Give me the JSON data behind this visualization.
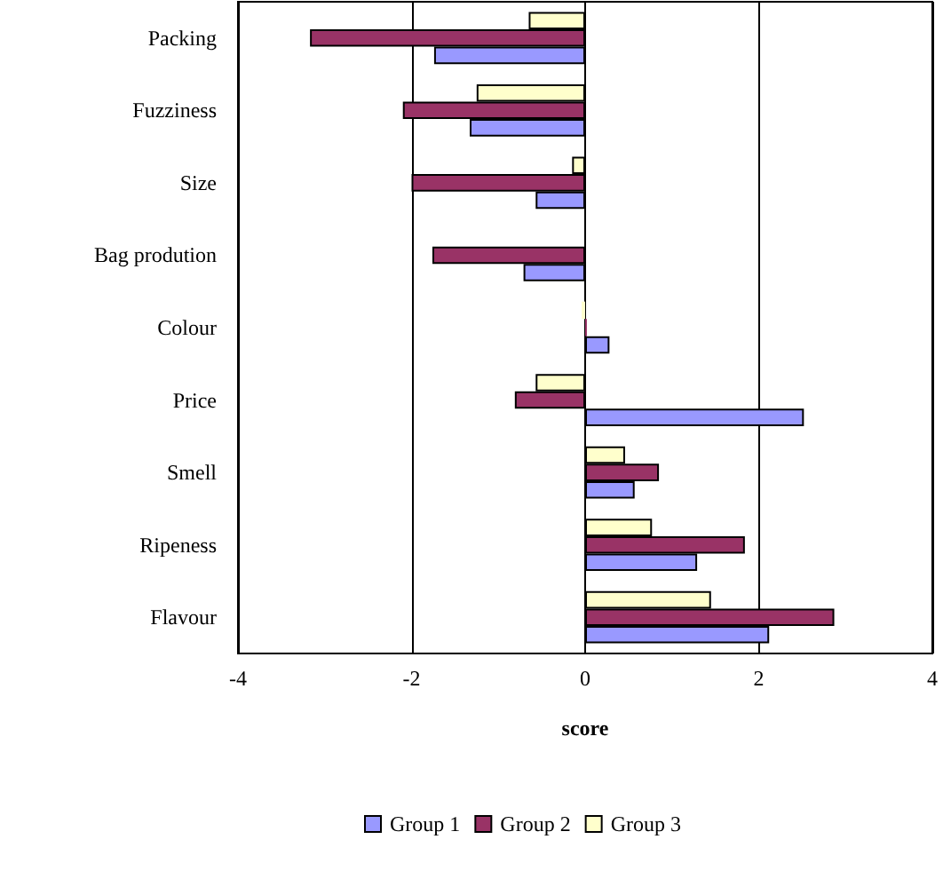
{
  "chart_data": {
    "type": "bar",
    "orientation": "horizontal",
    "xlabel": "score",
    "categories": [
      "Packing",
      "Fuzziness",
      "Size",
      "Bag prodution",
      "Colour",
      "Price",
      "Smell",
      "Ripeness",
      "Flavour"
    ],
    "series": [
      {
        "name": "Group 1",
        "color": "#9999ff",
        "values": [
          -1.74,
          -1.33,
          -0.57,
          -0.71,
          0.28,
          2.52,
          0.57,
          1.29,
          2.12
        ]
      },
      {
        "name": "Group 2",
        "color": "#993366",
        "values": [
          -3.17,
          -2.1,
          -2.0,
          -1.76,
          0.02,
          -0.81,
          0.85,
          1.84,
          2.87
        ]
      },
      {
        "name": "Group 3",
        "color": "#ffffcc",
        "values": [
          -0.65,
          -1.25,
          -0.15,
          null,
          -0.04,
          -0.57,
          0.46,
          0.77,
          1.45
        ]
      }
    ],
    "xlim": [
      -4,
      4
    ],
    "xticks": [
      -4,
      -2,
      0,
      2,
      4
    ],
    "grid": "x",
    "legend": "bottom"
  }
}
